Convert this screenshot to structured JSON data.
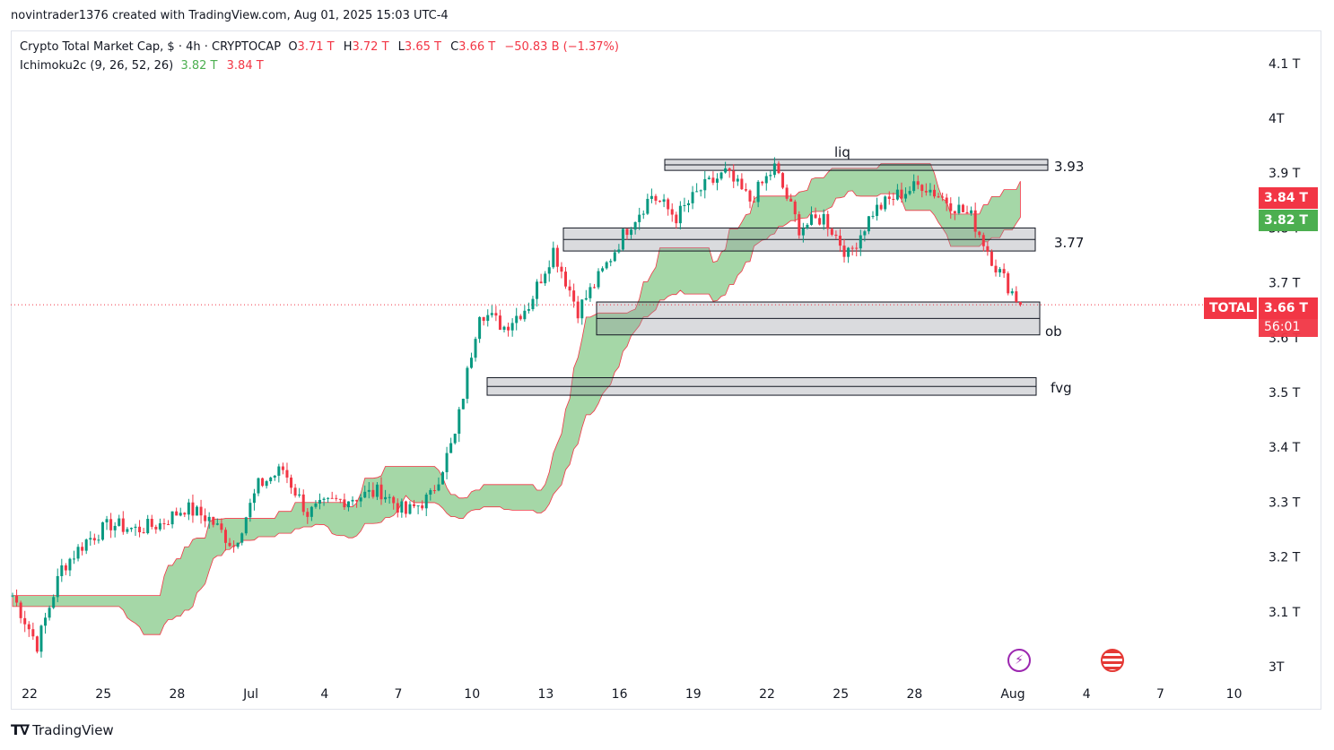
{
  "header": {
    "author_line": "novintrader1376 created with TradingView.com, Aug 01, 2025 15:03 UTC-4"
  },
  "legend": {
    "symbol": "Crypto Total Market Cap, $ · 4h · CRYPTOCAP",
    "o_label": "O",
    "o_value": "3.71 T",
    "h_label": "H",
    "h_value": "3.72 T",
    "l_label": "L",
    "l_value": "3.65 T",
    "c_label": "C",
    "c_value": "3.66 T",
    "change": "−50.83 B (−1.37%)",
    "indicator": "Ichimoku2c (9, 26, 52, 26)",
    "ind_val1": "3.82 T",
    "ind_val2": "3.84 T"
  },
  "price_tags": {
    "red_value": "3.84 T",
    "green_value": "3.82 T",
    "symbol_tag": "TOTAL",
    "last_value": "3.66 T",
    "countdown": "56:01"
  },
  "footer": {
    "brand": "TradingView"
  },
  "colors": {
    "up": "#089981",
    "down": "#f23645",
    "cloud": "#4caf50",
    "accent_red": "#f23645",
    "accent_green": "#4caf50"
  },
  "chart_data": {
    "type": "candlestick",
    "title": "Crypto Total Market Cap, $ · 4h · CRYPTOCAP",
    "ylim": [
      2.98,
      4.14
    ],
    "y_ticks": [
      "4.1 T",
      "4T",
      "3.9 T",
      "3.8 T",
      "3.7 T",
      "3.6 T",
      "3.5 T",
      "3.4 T",
      "3.3 T",
      "3.2 T",
      "3.1 T",
      "3T"
    ],
    "y_tick_values": [
      4.1,
      4.0,
      3.9,
      3.8,
      3.7,
      3.6,
      3.5,
      3.4,
      3.3,
      3.2,
      3.1,
      3.0
    ],
    "x_ticks": [
      "22",
      "25",
      "28",
      "Jul",
      "4",
      "7",
      "10",
      "13",
      "16",
      "19",
      "22",
      "25",
      "28",
      "Aug",
      "4",
      "7",
      "10"
    ],
    "x_tick_day_index": [
      0,
      3,
      6,
      9,
      12,
      15,
      18,
      21,
      24,
      27,
      30,
      33,
      36,
      40,
      43,
      46,
      49
    ],
    "x_unit": "days since Jun 22, 2025",
    "bars_per_day": 6,
    "series": [
      {
        "name": "Crypto Total Market Cap",
        "closes_daily": [
          3.13,
          3.04,
          3.18,
          3.23,
          3.26,
          3.25,
          3.26,
          3.29,
          3.27,
          3.22,
          3.33,
          3.36,
          3.28,
          3.3,
          3.31,
          3.32,
          3.28,
          3.31,
          3.42,
          3.65,
          3.62,
          3.66,
          3.76,
          3.65,
          3.72,
          3.8,
          3.86,
          3.82,
          3.87,
          3.9,
          3.85,
          3.91,
          3.8,
          3.82,
          3.75,
          3.83,
          3.86,
          3.88,
          3.85,
          3.82,
          3.73,
          3.66
        ]
      }
    ],
    "annotations": [
      {
        "label": "liq",
        "low": 3.905,
        "high": 3.925
      },
      {
        "label": "3.77",
        "low": 3.758,
        "high": 3.8
      },
      {
        "label": "ob",
        "low": 3.605,
        "high": 3.665
      },
      {
        "label": "fvg",
        "low": 3.495,
        "high": 3.527
      }
    ],
    "level_labels": [
      "liq",
      "3.93",
      "3.77",
      "ob",
      "fvg"
    ]
  }
}
